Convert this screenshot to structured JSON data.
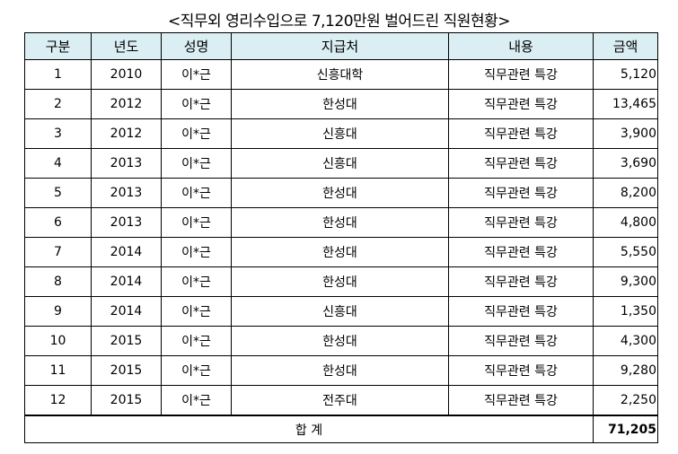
{
  "title": "<직무외 영리수입으로 7,120만원 벌어드린 직원현황>",
  "headers": [
    "구분",
    "년도",
    "성명",
    "지급처",
    "내용",
    "금액"
  ],
  "rows": [
    [
      "1",
      "2010",
      "이*근",
      "신흥대학",
      "직무관련 특강",
      "5,120"
    ],
    [
      "2",
      "2012",
      "이*근",
      "한성대",
      "직무관련 특강",
      "13,465"
    ],
    [
      "3",
      "2012",
      "이*근",
      "신흥대",
      "직무관련 특강",
      "3,900"
    ],
    [
      "4",
      "2013",
      "이*근",
      "신흥대",
      "직무관련 특강",
      "3,690"
    ],
    [
      "5",
      "2013",
      "이*근",
      "한성대",
      "직무관련 특강",
      "8,200"
    ],
    [
      "6",
      "2013",
      "이*근",
      "한성대",
      "직무관련 특강",
      "4,800"
    ],
    [
      "7",
      "2014",
      "이*근",
      "한성대",
      "직무관련 특강",
      "5,550"
    ],
    [
      "8",
      "2014",
      "이*근",
      "한성대",
      "직무관련 특강",
      "9,300"
    ],
    [
      "9",
      "2014",
      "이*근",
      "신흥대",
      "직무관련 특강",
      "1,350"
    ],
    [
      "10",
      "2015",
      "이*근",
      "한성대",
      "직무관련 특강",
      "4,300"
    ],
    [
      "11",
      "2015",
      "이*근",
      "한성대",
      "직무관련 특강",
      "9,280"
    ],
    [
      "12",
      "2015",
      "이*근",
      "전주대",
      "직무관련 특강",
      "2,250"
    ]
  ],
  "total": {
    "label": "합 계",
    "amount": "71,205"
  },
  "colors": {
    "header_bg": "#DAEEF3"
  }
}
